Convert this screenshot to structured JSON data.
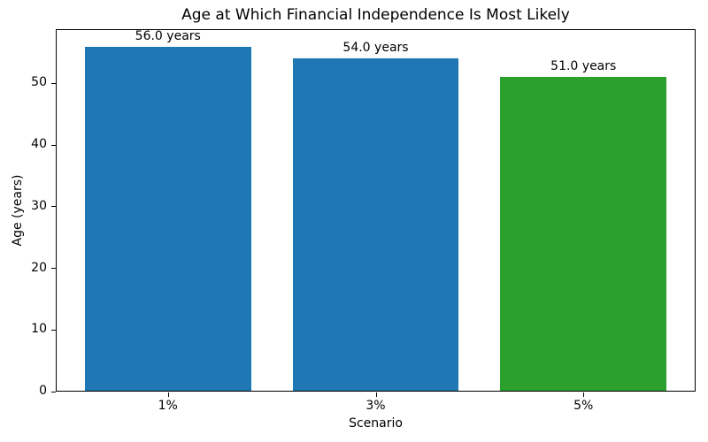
{
  "chart_data": {
    "type": "bar",
    "title": "Age at Which Financial Independence Is Most Likely",
    "xlabel": "Scenario",
    "ylabel": "Age (years)",
    "categories": [
      "1%",
      "3%",
      "5%"
    ],
    "values": [
      56.0,
      54.0,
      51.0
    ],
    "bar_labels": [
      "56.0 years",
      "54.0 years",
      "51.0 years"
    ],
    "bar_colors": [
      "#1f77b4",
      "#1f77b4",
      "#2ca02c"
    ],
    "ylim": [
      0,
      58.8
    ],
    "yticks": [
      0,
      10,
      20,
      30,
      40,
      50
    ],
    "grid": false,
    "legend": false,
    "spine_color": "#000000",
    "background_color": "#ffffff"
  }
}
